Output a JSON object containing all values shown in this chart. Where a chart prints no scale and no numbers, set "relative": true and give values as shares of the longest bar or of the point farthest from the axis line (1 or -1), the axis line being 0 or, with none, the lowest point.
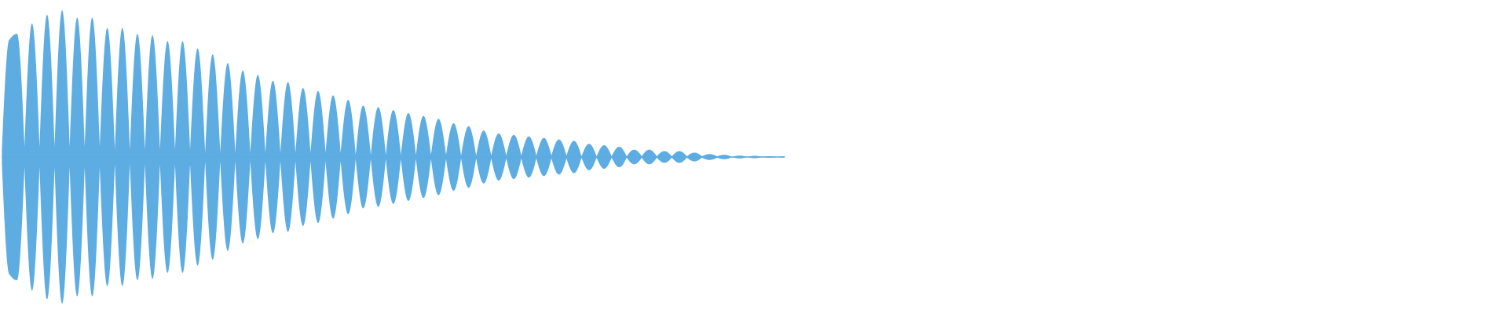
{
  "chart_data": {
    "type": "area",
    "relative": true,
    "categories": [
      null,
      null,
      null,
      null,
      null,
      null,
      null,
      null,
      null,
      null,
      null,
      null,
      null,
      null,
      null,
      null,
      null,
      null,
      null,
      null,
      null,
      null,
      null,
      null,
      null,
      null,
      null,
      null,
      null,
      null,
      null,
      null,
      null,
      null,
      null,
      null,
      null,
      null,
      null,
      null,
      null,
      null,
      null,
      null,
      null,
      null,
      null,
      null,
      null,
      null,
      null,
      null,
      null,
      null,
      null,
      null,
      null,
      null,
      null,
      null,
      null,
      null,
      null,
      null,
      null,
      null,
      null,
      null,
      null,
      null,
      null,
      null,
      null,
      null,
      null,
      null,
      null,
      null,
      null,
      null,
      null,
      null,
      null,
      null,
      null,
      null,
      null,
      null,
      null,
      null,
      null,
      null,
      null,
      null,
      null,
      null,
      null,
      null,
      null,
      null,
      null,
      null,
      null,
      null,
      null
    ],
    "series": [
      {
        "color": "#5dade2",
        "values": [
          0.05,
          0.8,
          0.84,
          0.07,
          0.91,
          0.07,
          0.97,
          0.07,
          1.0,
          0.07,
          0.95,
          0.07,
          0.95,
          0.07,
          0.88,
          0.05,
          0.88,
          0.05,
          0.84,
          0.05,
          0.83,
          0.05,
          0.79,
          0.05,
          0.79,
          0.05,
          0.74,
          0.03,
          0.7,
          0.03,
          0.64,
          0.03,
          0.59,
          0.03,
          0.56,
          0.03,
          0.52,
          0.03,
          0.51,
          0.03,
          0.47,
          0.03,
          0.45,
          0.03,
          0.42,
          0.03,
          0.39,
          0.015,
          0.35,
          0.015,
          0.34,
          0.015,
          0.32,
          0.015,
          0.3,
          0.015,
          0.28,
          0.015,
          0.26,
          0.015,
          0.23,
          0.01,
          0.21,
          0.01,
          0.18,
          0.01,
          0.16,
          0.01,
          0.15,
          0.01,
          0.14,
          0.01,
          0.13,
          0.01,
          0.12,
          0.01,
          0.11,
          0.005,
          0.09,
          0.005,
          0.08,
          0.005,
          0.07,
          0.005,
          0.05,
          0.005,
          0.05,
          0.005,
          0.04,
          0.005,
          0.04,
          0.005,
          0.03,
          0.005,
          0.02,
          0.005,
          0.015,
          0,
          0.01,
          0,
          0.008,
          0,
          0.005,
          0,
          0.004
        ]
      },
      {
        "color": "#5dade2",
        "values": [
          -0.05,
          -0.8,
          -0.84,
          -0.07,
          -0.91,
          -0.07,
          -0.97,
          -0.07,
          -1.0,
          -0.07,
          -0.95,
          -0.07,
          -0.95,
          -0.07,
          -0.88,
          -0.05,
          -0.88,
          -0.05,
          -0.84,
          -0.05,
          -0.83,
          -0.05,
          -0.79,
          -0.05,
          -0.79,
          -0.05,
          -0.74,
          -0.03,
          -0.7,
          -0.03,
          -0.64,
          -0.03,
          -0.59,
          -0.03,
          -0.56,
          -0.03,
          -0.52,
          -0.03,
          -0.51,
          -0.03,
          -0.47,
          -0.03,
          -0.45,
          -0.03,
          -0.42,
          -0.03,
          -0.39,
          -0.015,
          -0.35,
          -0.015,
          -0.34,
          -0.015,
          -0.32,
          -0.015,
          -0.3,
          -0.015,
          -0.28,
          -0.015,
          -0.26,
          -0.015,
          -0.23,
          -0.01,
          -0.21,
          -0.01,
          -0.18,
          -0.01,
          -0.16,
          -0.01,
          -0.15,
          -0.01,
          -0.14,
          -0.01,
          -0.13,
          -0.01,
          -0.12,
          -0.01,
          -0.11,
          -0.005,
          -0.09,
          -0.005,
          -0.08,
          -0.005,
          -0.07,
          -0.005,
          -0.05,
          -0.005,
          -0.05,
          -0.005,
          -0.04,
          -0.005,
          -0.04,
          -0.005,
          -0.03,
          -0.005,
          -0.02,
          -0.005,
          -0.015,
          0,
          -0.01,
          0,
          -0.008,
          0,
          -0.005,
          0,
          -0.004
        ]
      }
    ],
    "ref_lines": [
      {
        "axis": "y",
        "value": 0,
        "color": "#5dade2"
      }
    ]
  }
}
